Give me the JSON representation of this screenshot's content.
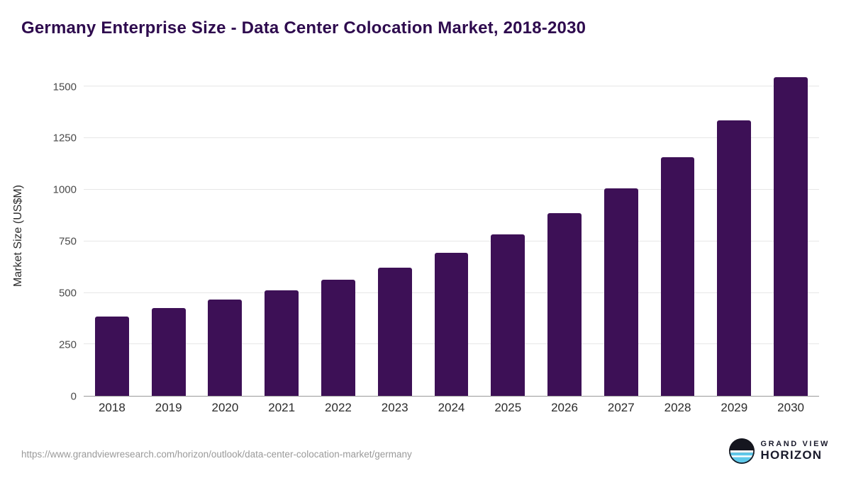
{
  "header": {
    "title": "Germany Enterprise Size - Data Center Colocation Market, 2018-2030"
  },
  "chart_data": {
    "type": "bar",
    "title": "Germany Enterprise Size - Data Center Colocation Market, 2018-2030",
    "categories": [
      "2018",
      "2019",
      "2020",
      "2021",
      "2022",
      "2023",
      "2024",
      "2025",
      "2026",
      "2027",
      "2028",
      "2029",
      "2030"
    ],
    "values": [
      385,
      425,
      468,
      512,
      565,
      622,
      695,
      782,
      888,
      1008,
      1158,
      1335,
      1545
    ],
    "xlabel": "",
    "ylabel": "Market Size (US$M)",
    "ylim": [
      0,
      1560
    ],
    "yticks": [
      0,
      250,
      500,
      750,
      1000,
      1250,
      1500
    ],
    "grid": "horizontal",
    "legend": "none",
    "bar_color": "#3d1056"
  },
  "footer": {
    "source_url": "https://www.grandviewresearch.com/horizon/outlook/data-center-colocation-market/germany",
    "logo": {
      "line1": "GRAND VIEW",
      "line2": "HORIZON"
    }
  },
  "colors": {
    "title": "#2e0b4e",
    "bar": "#3d1056",
    "grid": "#e7e7e7",
    "axis_line": "#9b9b9b",
    "tick_text": "#4a4a4a",
    "footer_text": "#9a9a9a",
    "logo_blue": "#5fc9ea"
  }
}
